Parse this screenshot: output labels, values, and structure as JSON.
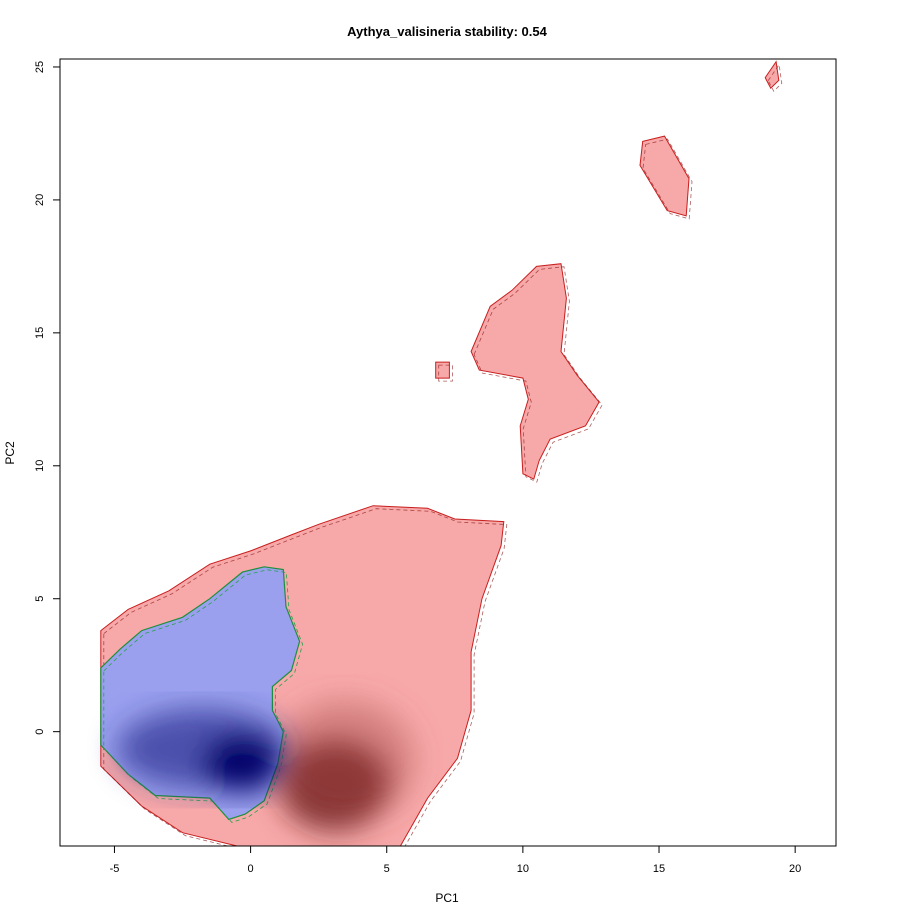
{
  "chart_data": {
    "type": "heatmap",
    "title": "Aythya_valisineria stability: 0.54",
    "xlabel": "PC1",
    "ylabel": "PC2",
    "xlim": [
      -7,
      21.5
    ],
    "ylim": [
      -4.3,
      25.3
    ],
    "x_ticks": [
      "-5",
      "0",
      "5",
      "10",
      "15",
      "20"
    ],
    "y_ticks": [
      "0",
      "5",
      "10",
      "15",
      "20",
      "25"
    ],
    "grid": false,
    "legend": "none",
    "series": [
      {
        "role": "background niche density",
        "color": "#f7a8a8",
        "regions": [
          [
            [
              -5.5,
              3.8
            ],
            [
              -4.5,
              4.6
            ],
            [
              -3,
              5.3
            ],
            [
              -1.5,
              6.3
            ],
            [
              0,
              6.8
            ],
            [
              1.5,
              7.4
            ],
            [
              2.5,
              7.8
            ],
            [
              4.5,
              8.5
            ],
            [
              6.5,
              8.4
            ],
            [
              7.5,
              8.0
            ],
            [
              9.3,
              7.9
            ],
            [
              9.2,
              7.0
            ],
            [
              8.5,
              5.0
            ],
            [
              8.1,
              3.0
            ],
            [
              8.1,
              0.8
            ],
            [
              7.6,
              -1.0
            ],
            [
              6.5,
              -2.5
            ],
            [
              5.5,
              -4.3
            ],
            [
              -0.5,
              -4.3
            ],
            [
              -2.5,
              -3.8
            ],
            [
              -4,
              -2.8
            ],
            [
              -5.5,
              -1.3
            ]
          ],
          [
            [
              8.1,
              14.3
            ],
            [
              8.8,
              16.0
            ],
            [
              9.6,
              16.6
            ],
            [
              10.5,
              17.5
            ],
            [
              11.4,
              17.6
            ],
            [
              11.6,
              16.3
            ],
            [
              11.4,
              14.3
            ],
            [
              12.0,
              13.4
            ],
            [
              12.8,
              12.4
            ],
            [
              12.3,
              11.5
            ],
            [
              11.0,
              11.0
            ],
            [
              10.6,
              10.2
            ],
            [
              10.4,
              9.5
            ],
            [
              10.0,
              9.7
            ],
            [
              9.9,
              11.5
            ],
            [
              10.2,
              12.5
            ],
            [
              10.0,
              13.3
            ],
            [
              8.4,
              13.6
            ]
          ],
          [
            [
              6.8,
              13.9
            ],
            [
              7.3,
              13.9
            ],
            [
              7.3,
              13.3
            ],
            [
              6.8,
              13.3
            ]
          ],
          [
            [
              14.4,
              22.2
            ],
            [
              15.2,
              22.4
            ],
            [
              16.1,
              20.8
            ],
            [
              16.0,
              19.4
            ],
            [
              15.3,
              19.6
            ],
            [
              14.3,
              21.3
            ]
          ],
          [
            [
              18.9,
              24.6
            ],
            [
              19.3,
              25.2
            ],
            [
              19.4,
              24.5
            ],
            [
              19.1,
              24.2
            ]
          ]
        ]
      },
      {
        "role": "species occurrence density",
        "color": "#9aa0ee",
        "regions": [
          [
            [
              -5.5,
              2.4
            ],
            [
              -4.8,
              3.1
            ],
            [
              -4.0,
              3.8
            ],
            [
              -2.5,
              4.3
            ],
            [
              -1.5,
              5.0
            ],
            [
              -0.3,
              6.0
            ],
            [
              0.5,
              6.2
            ],
            [
              1.2,
              6.1
            ],
            [
              1.3,
              4.7
            ],
            [
              1.8,
              3.4
            ],
            [
              1.5,
              2.3
            ],
            [
              0.8,
              1.7
            ],
            [
              0.8,
              0.8
            ],
            [
              1.2,
              0.0
            ],
            [
              1.0,
              -1.2
            ],
            [
              0.5,
              -2.6
            ],
            [
              -0.2,
              -3.1
            ],
            [
              -0.8,
              -3.3
            ],
            [
              -1.5,
              -2.5
            ],
            [
              -3.5,
              -2.4
            ],
            [
              -4.5,
              -1.6
            ],
            [
              -5.5,
              -0.5
            ]
          ]
        ]
      },
      {
        "role": "species density peak",
        "color": "#000066",
        "center": [
          -0.3,
          -1.2
        ]
      },
      {
        "role": "background density peak",
        "color": "#5a0a0a",
        "center": [
          3.1,
          -2.0
        ]
      }
    ]
  }
}
